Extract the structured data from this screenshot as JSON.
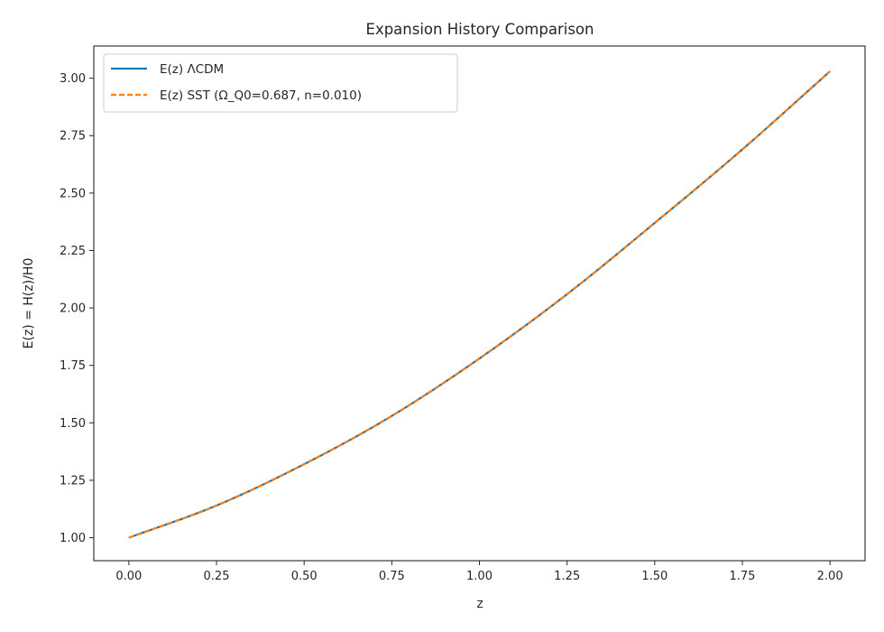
{
  "chart_data": {
    "type": "line",
    "title": "Expansion History Comparison",
    "xlabel": "z",
    "ylabel": "E(z) = H(z)/H0",
    "xlim": [
      -0.1,
      2.1
    ],
    "ylim": [
      0.9,
      3.14
    ],
    "xticks": [
      0.0,
      0.25,
      0.5,
      0.75,
      1.0,
      1.25,
      1.5,
      1.75,
      2.0
    ],
    "xtick_labels": [
      "0.00",
      "0.25",
      "0.50",
      "0.75",
      "1.00",
      "1.25",
      "1.50",
      "1.75",
      "2.00"
    ],
    "yticks": [
      1.0,
      1.25,
      1.5,
      1.75,
      2.0,
      2.25,
      2.5,
      2.75,
      3.0
    ],
    "ytick_labels": [
      "1.00",
      "1.25",
      "1.50",
      "1.75",
      "2.00",
      "2.25",
      "2.50",
      "2.75",
      "3.00"
    ],
    "grid": false,
    "legend_position": "top-left",
    "x": [
      0.0,
      0.25,
      0.5,
      0.75,
      1.0,
      1.25,
      1.5,
      1.75,
      2.0
    ],
    "series": [
      {
        "name": "E(z) ΛCDM",
        "color": "#1f77b4",
        "style": "solid",
        "values": [
          1.0,
          1.14,
          1.32,
          1.53,
          1.78,
          2.06,
          2.37,
          2.69,
          3.03
        ]
      },
      {
        "name": "E(z) SST (Ω_Q0=0.687, n=0.010)",
        "color": "#ff7f0e",
        "style": "dashed",
        "values": [
          1.0,
          1.14,
          1.32,
          1.53,
          1.78,
          2.06,
          2.37,
          2.69,
          3.03
        ]
      }
    ]
  }
}
